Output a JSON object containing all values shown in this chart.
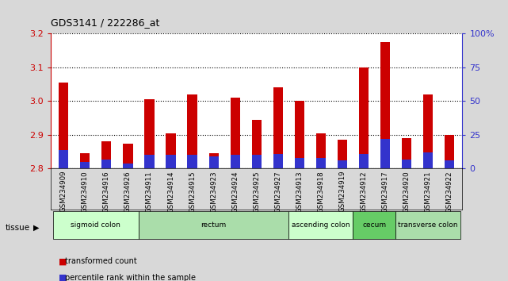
{
  "title": "GDS3141 / 222286_at",
  "samples": [
    "GSM234909",
    "GSM234910",
    "GSM234916",
    "GSM234926",
    "GSM234911",
    "GSM234914",
    "GSM234915",
    "GSM234923",
    "GSM234924",
    "GSM234925",
    "GSM234927",
    "GSM234913",
    "GSM234918",
    "GSM234919",
    "GSM234912",
    "GSM234917",
    "GSM234920",
    "GSM234921",
    "GSM234922"
  ],
  "transformed_count": [
    3.055,
    2.845,
    2.88,
    2.875,
    3.005,
    2.905,
    3.02,
    2.845,
    3.01,
    2.945,
    3.04,
    3.0,
    2.905,
    2.885,
    3.1,
    3.175,
    2.89,
    3.02,
    2.9
  ],
  "percentile_rank": [
    14,
    5,
    7,
    4,
    10,
    10,
    10,
    9,
    10,
    10,
    11,
    8,
    8,
    6,
    11,
    22,
    7,
    12,
    6
  ],
  "ymin": 2.8,
  "ymax": 3.2,
  "yticks": [
    2.8,
    2.9,
    3.0,
    3.1,
    3.2
  ],
  "right_yticks": [
    0,
    25,
    50,
    75,
    100
  ],
  "bar_color_red": "#cc0000",
  "bar_color_blue": "#3333cc",
  "left_axis_color": "#cc0000",
  "right_axis_color": "#3333cc",
  "tissue_groups": [
    {
      "label": "sigmoid colon",
      "start": 0,
      "end": 4,
      "color": "#ccffcc"
    },
    {
      "label": "rectum",
      "start": 4,
      "end": 11,
      "color": "#aaddaa"
    },
    {
      "label": "ascending colon",
      "start": 11,
      "end": 14,
      "color": "#ccffcc"
    },
    {
      "label": "cecum",
      "start": 14,
      "end": 16,
      "color": "#66cc66"
    },
    {
      "label": "transverse colon",
      "start": 16,
      "end": 19,
      "color": "#aaddaa"
    }
  ],
  "bg_color": "#d8d8d8",
  "plot_bg_color": "#ffffff",
  "grid_color": "#000000",
  "legend_items": [
    "transformed count",
    "percentile rank within the sample"
  ]
}
